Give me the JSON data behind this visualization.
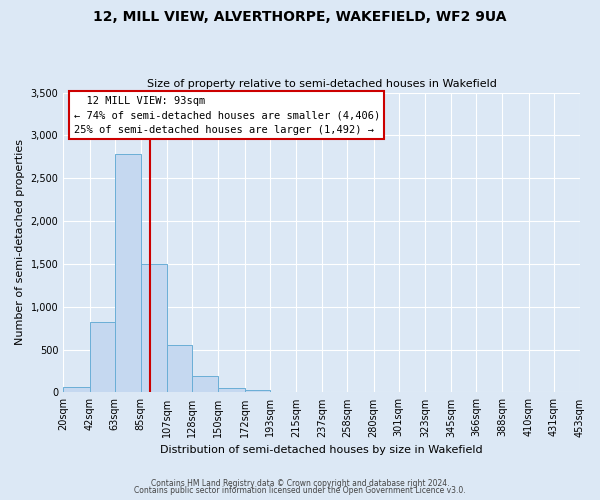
{
  "title": "12, MILL VIEW, ALVERTHORPE, WAKEFIELD, WF2 9UA",
  "subtitle": "Size of property relative to semi-detached houses in Wakefield",
  "xlabel": "Distribution of semi-detached houses by size in Wakefield",
  "ylabel": "Number of semi-detached properties",
  "bar_edges": [
    20,
    42,
    63,
    85,
    107,
    128,
    150,
    172,
    193,
    215,
    237,
    258,
    280,
    301,
    323,
    345,
    366,
    388,
    410,
    431,
    453
  ],
  "bar_heights": [
    60,
    820,
    2780,
    1500,
    550,
    190,
    55,
    30,
    0,
    0,
    0,
    0,
    0,
    0,
    0,
    0,
    0,
    0,
    0,
    0
  ],
  "bar_color": "#c5d8f0",
  "bar_edge_color": "#6aaed6",
  "property_line_x": 93,
  "property_line_color": "#cc0000",
  "annotation_title": "12 MILL VIEW: 93sqm",
  "annotation_line1": "← 74% of semi-detached houses are smaller (4,406)",
  "annotation_line2": "25% of semi-detached houses are larger (1,492) →",
  "annotation_box_color": "#cc0000",
  "ylim": [
    0,
    3500
  ],
  "yticks": [
    0,
    500,
    1000,
    1500,
    2000,
    2500,
    3000,
    3500
  ],
  "footnote1": "Contains HM Land Registry data © Crown copyright and database right 2024.",
  "footnote2": "Contains public sector information licensed under the Open Government Licence v3.0.",
  "background_color": "#dce8f5",
  "plot_background": "#dce8f5",
  "grid_color": "#ffffff",
  "title_fontsize": 10,
  "subtitle_fontsize": 8,
  "ylabel_fontsize": 8,
  "xlabel_fontsize": 8,
  "tick_fontsize": 7,
  "annotation_fontsize": 7.5
}
